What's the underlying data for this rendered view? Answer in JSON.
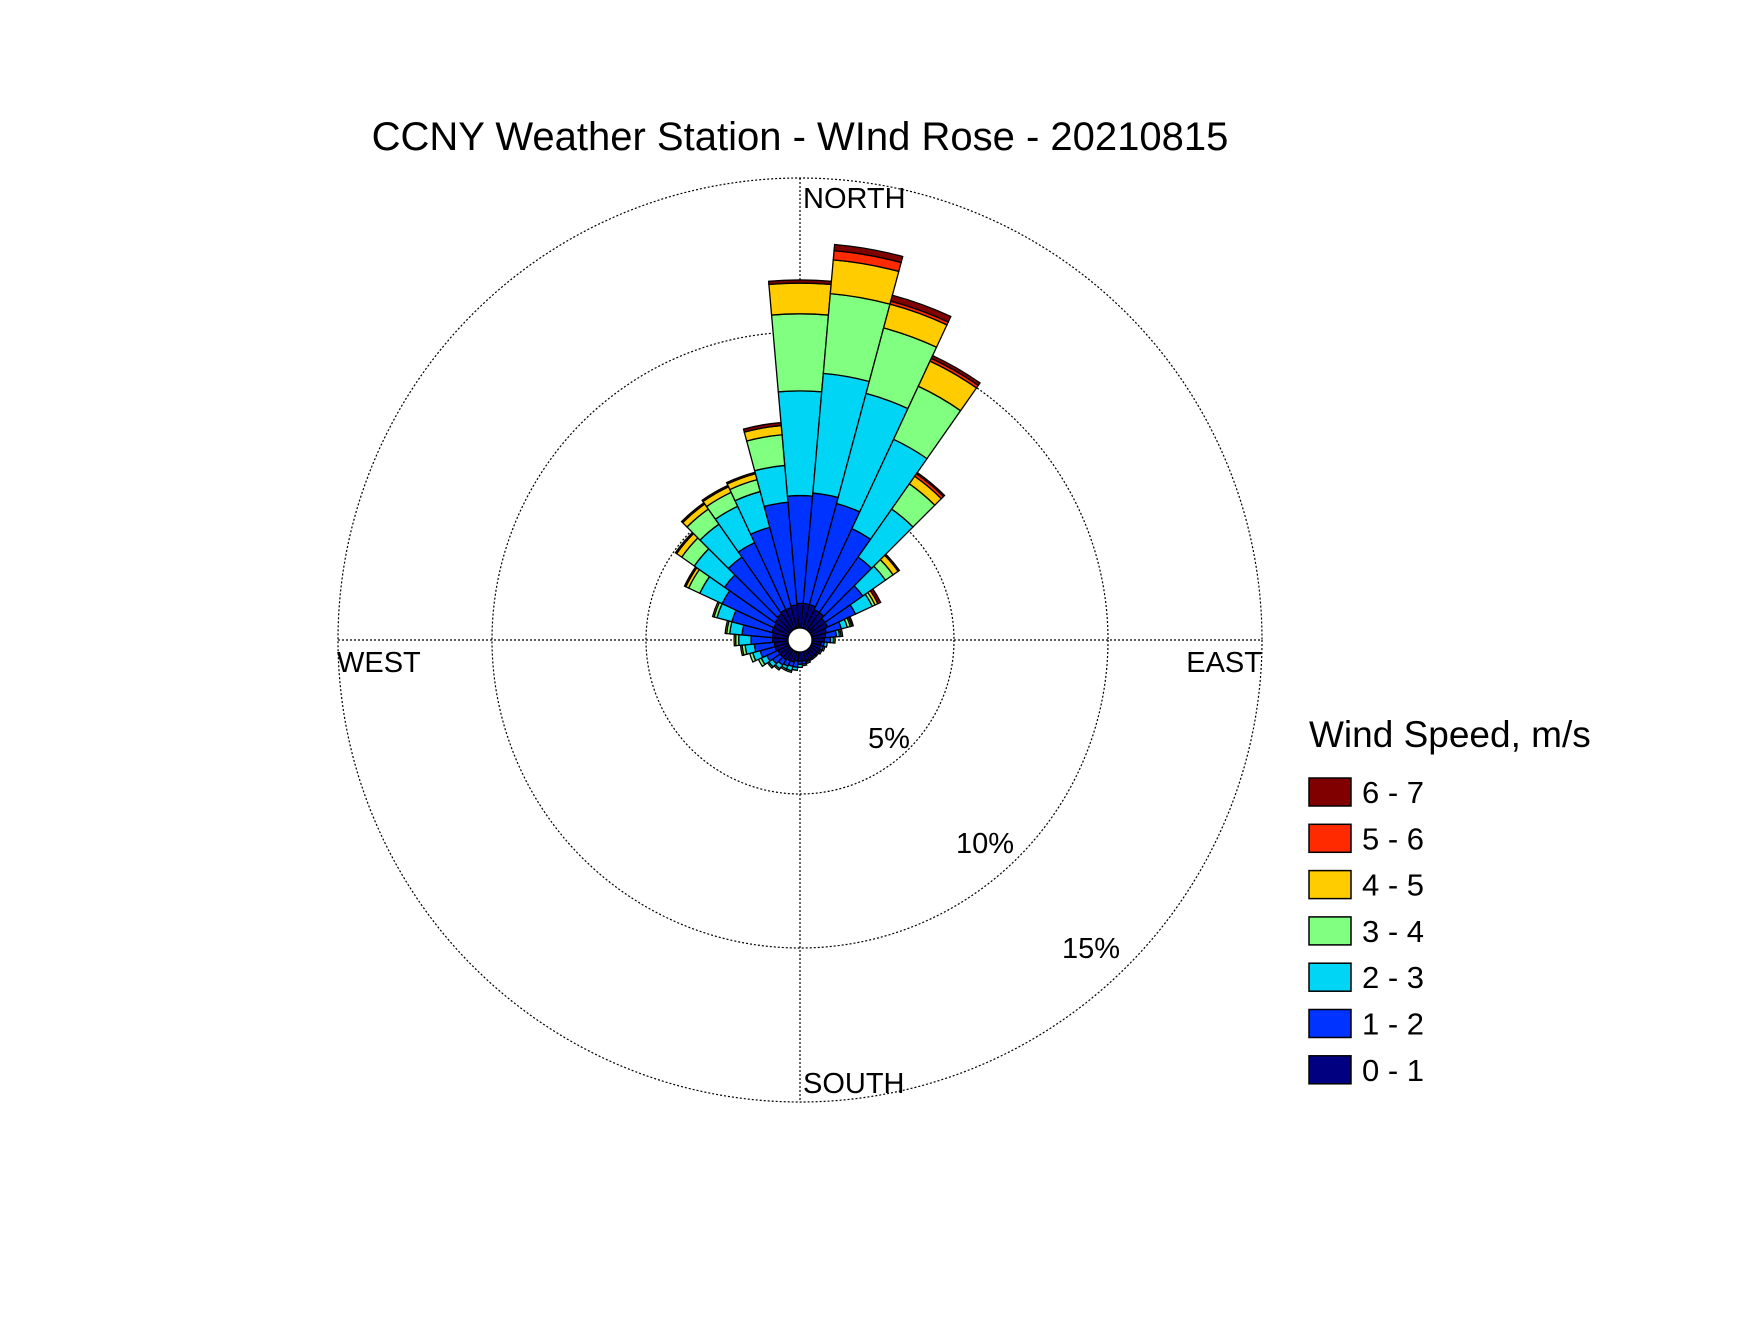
{
  "chart_data": {
    "type": "wind-rose",
    "title": "CCNY Weather Station - WInd Rose - 20210815",
    "direction_labels": {
      "north": "NORTH",
      "east": "EAST",
      "south": "SOUTH",
      "west": "WEST"
    },
    "radial_unit": "%",
    "radial_rings": [
      5,
      10,
      15
    ],
    "radial_ring_labels": [
      "5%",
      "10%",
      "15%"
    ],
    "radial_max": 15,
    "direction_bin_width_deg": 10,
    "legend": {
      "title": "Wind Speed, m/s",
      "placement": "right"
    },
    "speed_bins": [
      {
        "label": "0 - 1",
        "color": "#000080"
      },
      {
        "label": "1 - 2",
        "color": "#0033FF"
      },
      {
        "label": "2 - 3",
        "color": "#00D5F5"
      },
      {
        "label": "3 - 4",
        "color": "#80FF80"
      },
      {
        "label": "4 - 5",
        "color": "#FFCC00"
      },
      {
        "label": "5 - 6",
        "color": "#FF2A00"
      },
      {
        "label": "6 - 7",
        "color": "#800000"
      }
    ],
    "sectors": [
      {
        "direction_deg": 0,
        "cumulative_pct": [
          0.8,
          4.3,
          7.7,
          10.2,
          11.2,
          11.2,
          11.3
        ]
      },
      {
        "direction_deg": 10,
        "cumulative_pct": [
          0.8,
          4.4,
          8.3,
          10.9,
          12.0,
          12.3,
          12.5
        ]
      },
      {
        "direction_deg": 20,
        "cumulative_pct": [
          0.8,
          4.2,
          7.9,
          10.1,
          10.9,
          11.0,
          11.2
        ]
      },
      {
        "direction_deg": 30,
        "cumulative_pct": [
          0.7,
          3.6,
          6.8,
          8.7,
          9.6,
          9.7,
          9.8
        ]
      },
      {
        "direction_deg": 40,
        "cumulative_pct": [
          0.7,
          2.9,
          4.8,
          5.8,
          6.1,
          6.2,
          6.25
        ]
      },
      {
        "direction_deg": 50,
        "cumulative_pct": [
          0.6,
          2.1,
          3.0,
          3.3,
          3.5,
          3.5,
          3.55
        ]
      },
      {
        "direction_deg": 60,
        "cumulative_pct": [
          0.6,
          1.6,
          2.2,
          2.3,
          2.4,
          2.4,
          2.5
        ]
      },
      {
        "direction_deg": 70,
        "cumulative_pct": [
          0.5,
          1.0,
          1.2,
          1.3,
          1.35,
          1.35,
          1.4
        ]
      },
      {
        "direction_deg": 80,
        "cumulative_pct": [
          0.45,
          0.8,
          0.9,
          0.95,
          1.0,
          1.0,
          1.0
        ]
      },
      {
        "direction_deg": 90,
        "cumulative_pct": [
          0.4,
          0.6,
          0.7,
          0.7,
          0.75,
          0.75,
          0.75
        ]
      },
      {
        "direction_deg": 100,
        "cumulative_pct": [
          0.3,
          0.4,
          0.5,
          0.5,
          0.5,
          0.5,
          0.5
        ]
      },
      {
        "direction_deg": 110,
        "cumulative_pct": [
          0.3,
          0.4,
          0.4,
          0.45,
          0.45,
          0.45,
          0.45
        ]
      },
      {
        "direction_deg": 120,
        "cumulative_pct": [
          0.3,
          0.35,
          0.4,
          0.4,
          0.4,
          0.4,
          0.4
        ]
      },
      {
        "direction_deg": 130,
        "cumulative_pct": [
          0.3,
          0.35,
          0.35,
          0.35,
          0.35,
          0.35,
          0.35
        ]
      },
      {
        "direction_deg": 140,
        "cumulative_pct": [
          0.3,
          0.3,
          0.35,
          0.35,
          0.35,
          0.35,
          0.35
        ]
      },
      {
        "direction_deg": 150,
        "cumulative_pct": [
          0.3,
          0.35,
          0.35,
          0.35,
          0.35,
          0.35,
          0.35
        ]
      },
      {
        "direction_deg": 160,
        "cumulative_pct": [
          0.3,
          0.35,
          0.4,
          0.4,
          0.4,
          0.4,
          0.4
        ]
      },
      {
        "direction_deg": 170,
        "cumulative_pct": [
          0.3,
          0.4,
          0.45,
          0.45,
          0.45,
          0.45,
          0.45
        ]
      },
      {
        "direction_deg": 180,
        "cumulative_pct": [
          0.3,
          0.4,
          0.5,
          0.5,
          0.5,
          0.5,
          0.5
        ]
      },
      {
        "direction_deg": 190,
        "cumulative_pct": [
          0.3,
          0.5,
          0.6,
          0.6,
          0.6,
          0.6,
          0.6
        ]
      },
      {
        "direction_deg": 200,
        "cumulative_pct": [
          0.35,
          0.5,
          0.65,
          0.7,
          0.7,
          0.7,
          0.7
        ]
      },
      {
        "direction_deg": 210,
        "cumulative_pct": [
          0.35,
          0.55,
          0.65,
          0.7,
          0.7,
          0.7,
          0.7
        ]
      },
      {
        "direction_deg": 220,
        "cumulative_pct": [
          0.4,
          0.6,
          0.75,
          0.8,
          0.8,
          0.8,
          0.8
        ]
      },
      {
        "direction_deg": 230,
        "cumulative_pct": [
          0.4,
          0.7,
          0.85,
          0.9,
          0.9,
          0.9,
          0.9
        ]
      },
      {
        "direction_deg": 240,
        "cumulative_pct": [
          0.4,
          0.8,
          1.0,
          1.1,
          1.1,
          1.1,
          1.1
        ]
      },
      {
        "direction_deg": 250,
        "cumulative_pct": [
          0.45,
          0.95,
          1.2,
          1.3,
          1.3,
          1.3,
          1.3
        ]
      },
      {
        "direction_deg": 260,
        "cumulative_pct": [
          0.45,
          1.1,
          1.4,
          1.5,
          1.55,
          1.55,
          1.55
        ]
      },
      {
        "direction_deg": 270,
        "cumulative_pct": [
          0.5,
          1.2,
          1.6,
          1.7,
          1.75,
          1.75,
          1.75
        ]
      },
      {
        "direction_deg": 280,
        "cumulative_pct": [
          0.5,
          1.5,
          1.9,
          2.0,
          2.05,
          2.05,
          2.05
        ]
      },
      {
        "direction_deg": 290,
        "cumulative_pct": [
          0.55,
          1.9,
          2.4,
          2.5,
          2.55,
          2.55,
          2.55
        ]
      },
      {
        "direction_deg": 300,
        "cumulative_pct": [
          0.55,
          2.4,
          3.2,
          3.6,
          3.7,
          3.7,
          3.75
        ]
      },
      {
        "direction_deg": 310,
        "cumulative_pct": [
          0.6,
          2.6,
          3.8,
          4.3,
          4.5,
          4.5,
          4.55
        ]
      },
      {
        "direction_deg": 320,
        "cumulative_pct": [
          0.65,
          2.9,
          4.2,
          4.8,
          5.0,
          5.0,
          5.05
        ]
      },
      {
        "direction_deg": 330,
        "cumulative_pct": [
          0.7,
          3.1,
          4.4,
          4.9,
          5.1,
          5.1,
          5.15
        ]
      },
      {
        "direction_deg": 340,
        "cumulative_pct": [
          0.7,
          3.4,
          4.6,
          5.0,
          5.2,
          5.2,
          5.25
        ]
      },
      {
        "direction_deg": 350,
        "cumulative_pct": [
          0.75,
          4.1,
          5.3,
          6.3,
          6.6,
          6.6,
          6.7
        ]
      }
    ]
  }
}
